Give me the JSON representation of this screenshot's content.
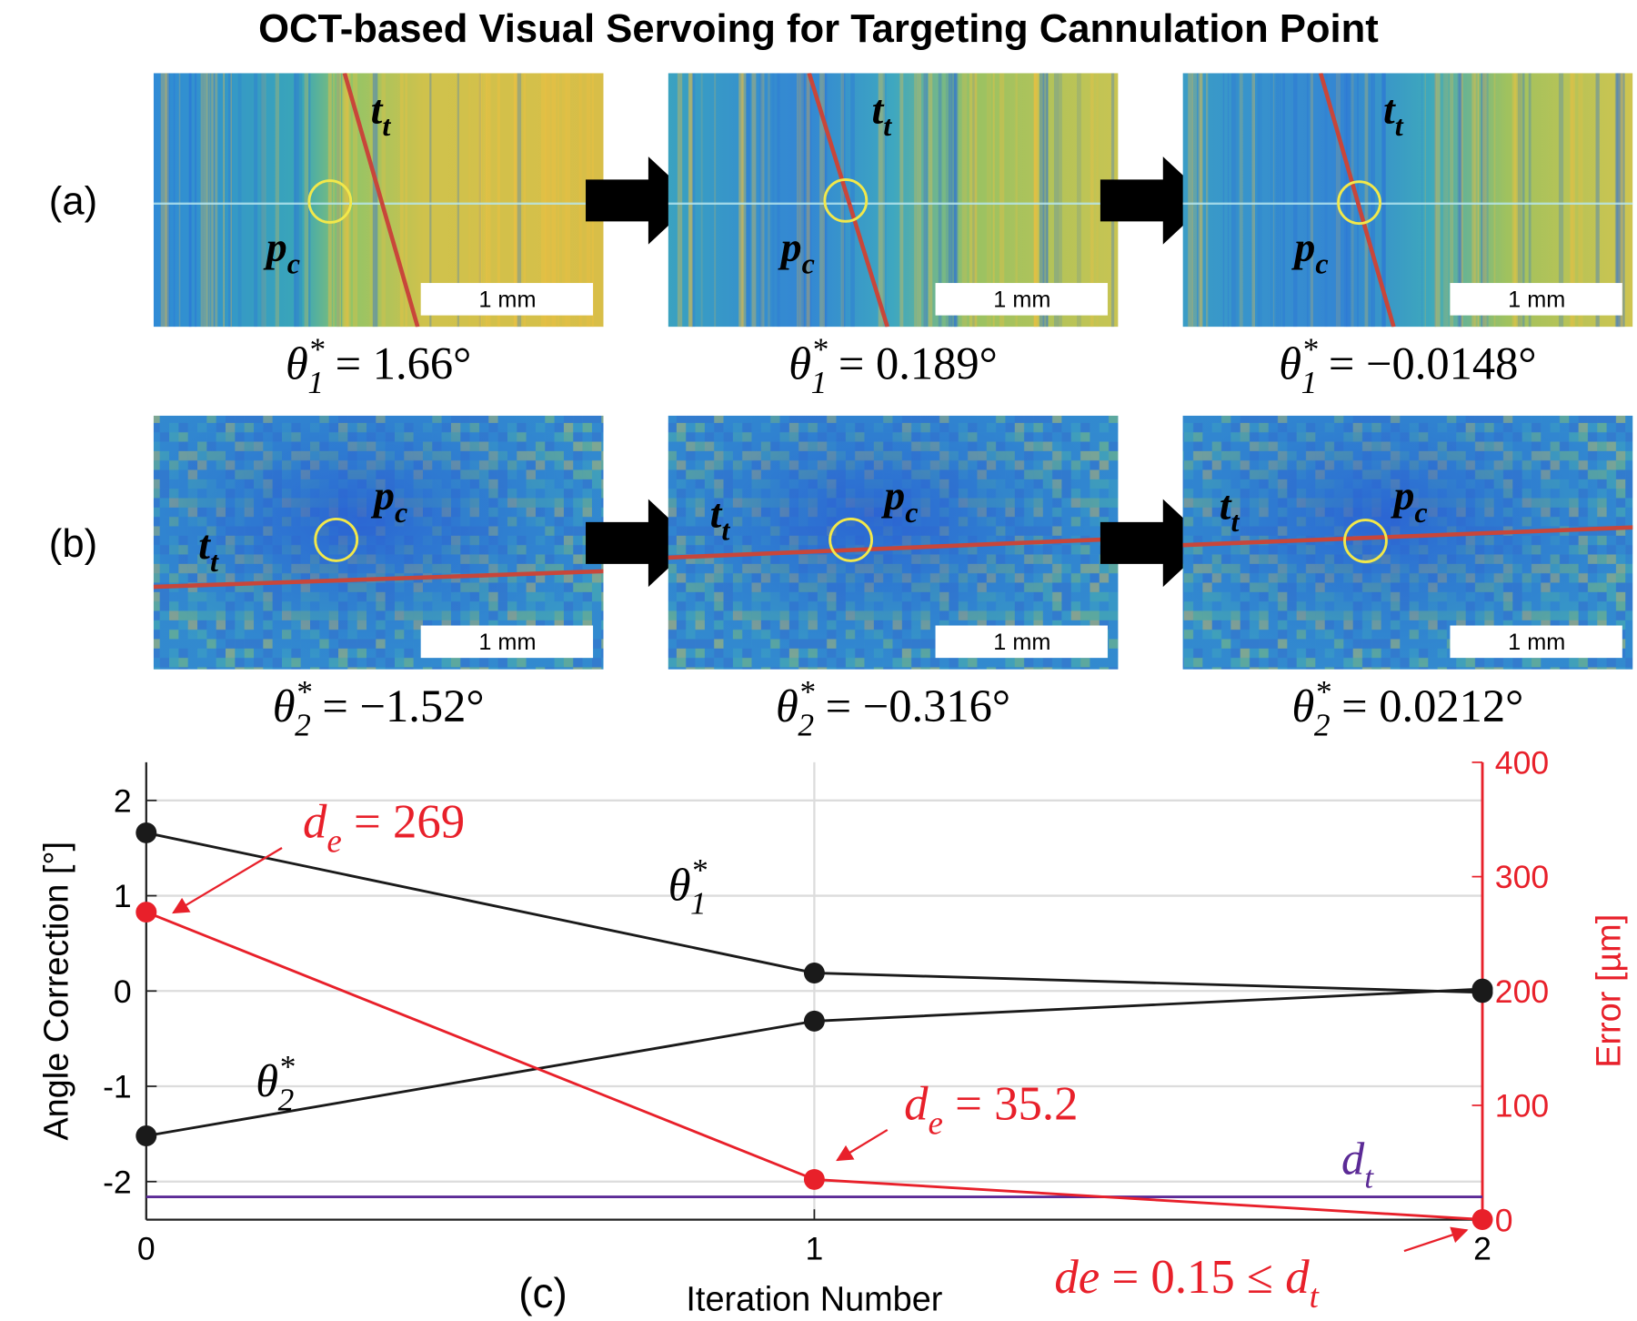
{
  "title": "OCT-based Visual Servoing for Targeting Cannulation Point",
  "rows": [
    {
      "label": "(a)",
      "panels": [
        {
          "tool": [
            {
              "text": "t"
            },
            {
              "sub": "t"
            }
          ],
          "point": [
            {
              "text": "p"
            },
            {
              "sub": "c"
            }
          ],
          "scale_bar": "1 mm",
          "caption": [
            {
              "text": "θ"
            },
            {
              "sup": "*"
            },
            {
              "sub": "1"
            },
            {
              "text": " = 1.66°"
            }
          ]
        },
        {
          "tool": [
            {
              "text": "t"
            },
            {
              "sub": "t"
            }
          ],
          "point": [
            {
              "text": "p"
            },
            {
              "sub": "c"
            }
          ],
          "scale_bar": "1 mm",
          "caption": [
            {
              "text": "θ"
            },
            {
              "sup": "*"
            },
            {
              "sub": "1"
            },
            {
              "text": " = 0.189°"
            }
          ]
        },
        {
          "tool": [
            {
              "text": "t"
            },
            {
              "sub": "t"
            }
          ],
          "point": [
            {
              "text": "p"
            },
            {
              "sub": "c"
            }
          ],
          "scale_bar": "1 mm",
          "caption": [
            {
              "text": "θ"
            },
            {
              "sup": "*"
            },
            {
              "sub": "1"
            },
            {
              "text": " = −0.0148°"
            }
          ]
        }
      ]
    },
    {
      "label": "(b)",
      "panels": [
        {
          "tool": [
            {
              "text": "t"
            },
            {
              "sub": "t"
            }
          ],
          "point": [
            {
              "text": "p"
            },
            {
              "sub": "c"
            }
          ],
          "scale_bar": "1 mm",
          "caption": [
            {
              "text": "θ"
            },
            {
              "sup": "*"
            },
            {
              "sub": "2"
            },
            {
              "text": " = −1.52°"
            }
          ]
        },
        {
          "tool": [
            {
              "text": "t"
            },
            {
              "sub": "t"
            }
          ],
          "point": [
            {
              "text": "p"
            },
            {
              "sub": "c"
            }
          ],
          "scale_bar": "1 mm",
          "caption": [
            {
              "text": "θ"
            },
            {
              "sup": "*"
            },
            {
              "sub": "2"
            },
            {
              "text": " = −0.316°"
            }
          ]
        },
        {
          "tool": [
            {
              "text": "t"
            },
            {
              "sub": "t"
            }
          ],
          "point": [
            {
              "text": "p"
            },
            {
              "sub": "c"
            }
          ],
          "scale_bar": "1 mm",
          "caption": [
            {
              "text": "θ"
            },
            {
              "sup": "*"
            },
            {
              "sub": "2"
            },
            {
              "text": " = 0.0212°"
            }
          ]
        }
      ]
    }
  ],
  "chart_data": {
    "type": "line",
    "panel_label": "(c)",
    "x_label": "Iteration Number",
    "y_label": "Angle Correction [°]",
    "y2_label": "Error [µm]",
    "x": [
      0,
      1,
      2
    ],
    "xlim": [
      0,
      2
    ],
    "xticks": [
      0,
      1,
      2
    ],
    "ylim": [
      -2.4,
      2.4
    ],
    "yticks": [
      -2,
      -1,
      0,
      1,
      2
    ],
    "y2lim": [
      0,
      400
    ],
    "y2ticks": [
      0,
      100,
      200,
      300,
      400
    ],
    "y2_color": "#e8202a",
    "grid": true,
    "series": [
      {
        "label": [
          {
            "text": "θ"
          },
          {
            "sup": "*"
          },
          {
            "sub": "1"
          }
        ],
        "color": "#1a1a1a",
        "values": [
          1.66,
          0.189,
          -0.0148
        ]
      },
      {
        "label": [
          {
            "text": "θ"
          },
          {
            "sup": "*"
          },
          {
            "sub": "2"
          }
        ],
        "color": "#1a1a1a",
        "values": [
          -1.52,
          -0.316,
          0.0212
        ]
      },
      {
        "label": [
          {
            "text": "d"
          },
          {
            "sub": "e"
          }
        ],
        "color": "#e8202a",
        "axis": "y2",
        "values": [
          269,
          35.2,
          0.15
        ]
      }
    ],
    "threshold": {
      "label": [
        {
          "text": "d"
        },
        {
          "sub": "t"
        }
      ],
      "color": "#5b2a96",
      "axis": "y2",
      "value": 20
    },
    "annotations": [
      [
        {
          "text": "d"
        },
        {
          "sub": "e"
        },
        {
          "text": " = 269"
        }
      ],
      [
        {
          "text": "d"
        },
        {
          "sub": "e"
        },
        {
          "text": " = 35.2"
        }
      ],
      [
        {
          "text": "de"
        },
        {
          "text": " = 0.15 ≤ "
        },
        {
          "text": "d"
        },
        {
          "sub": "t"
        }
      ]
    ]
  }
}
